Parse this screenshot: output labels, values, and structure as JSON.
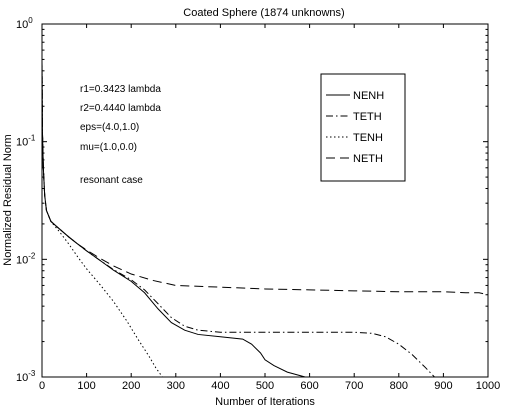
{
  "chart_data": {
    "type": "line",
    "title": "Coated Sphere (1874 unknowns)",
    "xlabel": "Number of Iterations",
    "ylabel": "Normalized Residual Norm",
    "xlim": [
      0,
      1000
    ],
    "ylim": [
      0.001,
      1
    ],
    "yscale": "log",
    "grid": false,
    "legend_position": "top-right",
    "x_ticks": [
      0,
      100,
      200,
      300,
      400,
      500,
      600,
      700,
      800,
      900,
      1000
    ],
    "y_ticks": [
      {
        "base": "10",
        "exp": "0",
        "value": 1
      },
      {
        "base": "10",
        "exp": "-1",
        "value": 0.1
      },
      {
        "base": "10",
        "exp": "-2",
        "value": 0.01
      },
      {
        "base": "10",
        "exp": "-3",
        "value": 0.001
      }
    ],
    "annotations": [
      "r1=0.3423 lambda",
      "r2=0.4440 lambda",
      "eps=(4.0,1.0)",
      "mu=(1.0,0.0)",
      "resonant case"
    ],
    "series": [
      {
        "name": "NENH",
        "dash": "solid",
        "x": [
          0,
          1,
          3,
          6,
          10,
          20,
          40,
          60,
          80,
          100,
          130,
          160,
          200,
          230,
          260,
          290,
          320,
          350,
          400,
          450,
          470,
          490,
          500,
          520,
          550,
          590
        ],
        "y": [
          0.48,
          0.12,
          0.06,
          0.035,
          0.026,
          0.021,
          0.018,
          0.0155,
          0.0135,
          0.0118,
          0.0098,
          0.0081,
          0.0065,
          0.0052,
          0.0038,
          0.0029,
          0.0025,
          0.0023,
          0.0022,
          0.0021,
          0.0019,
          0.0016,
          0.0014,
          0.00125,
          0.0011,
          0.001
        ]
      },
      {
        "name": "TETH",
        "dash": "dashdot",
        "x": [
          0,
          1,
          3,
          6,
          10,
          20,
          40,
          60,
          80,
          100,
          130,
          160,
          200,
          230,
          260,
          290,
          320,
          350,
          400,
          500,
          600,
          700,
          740,
          770,
          800,
          830,
          860,
          880
        ],
        "y": [
          0.48,
          0.12,
          0.06,
          0.035,
          0.026,
          0.021,
          0.018,
          0.0155,
          0.0135,
          0.0118,
          0.0098,
          0.0082,
          0.0067,
          0.0055,
          0.0042,
          0.0032,
          0.0027,
          0.0025,
          0.0024,
          0.0024,
          0.0024,
          0.0024,
          0.00235,
          0.0022,
          0.0019,
          0.00155,
          0.0012,
          0.001
        ]
      },
      {
        "name": "TENH",
        "dash": "dotted",
        "x": [
          0,
          1,
          3,
          6,
          10,
          20,
          40,
          60,
          80,
          100,
          130,
          160,
          190,
          215,
          240,
          255,
          270
        ],
        "y": [
          0.48,
          0.12,
          0.06,
          0.035,
          0.026,
          0.021,
          0.017,
          0.0135,
          0.0105,
          0.0083,
          0.0061,
          0.0044,
          0.003,
          0.0021,
          0.0015,
          0.0012,
          0.001
        ]
      },
      {
        "name": "NETH",
        "dash": "dashed",
        "x": [
          0,
          1,
          3,
          6,
          10,
          20,
          40,
          60,
          80,
          100,
          130,
          160,
          200,
          250,
          300,
          400,
          500,
          600,
          700,
          800,
          900,
          950,
          980,
          1000
        ],
        "y": [
          0.48,
          0.12,
          0.06,
          0.035,
          0.026,
          0.021,
          0.018,
          0.0155,
          0.0135,
          0.012,
          0.0102,
          0.0088,
          0.0075,
          0.0066,
          0.006,
          0.0058,
          0.0056,
          0.0055,
          0.0054,
          0.0053,
          0.0053,
          0.0052,
          0.0052,
          0.005
        ]
      }
    ]
  }
}
